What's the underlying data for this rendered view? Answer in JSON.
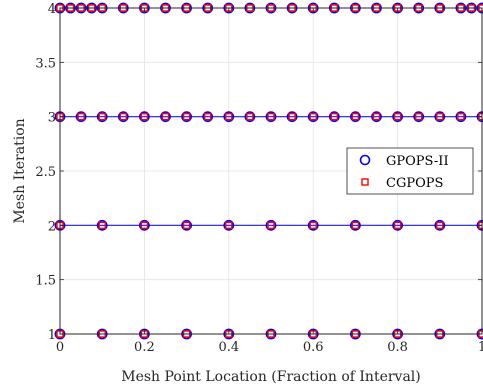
{
  "chart_data": {
    "type": "scatter",
    "title": "",
    "xlabel": "Mesh Point Location (Fraction of Interval)",
    "ylabel": "Mesh Iteration",
    "xlim": [
      0,
      1
    ],
    "ylim": [
      1,
      4
    ],
    "x_ticks": [
      "0",
      "0.2",
      "0.4",
      "0.6",
      "0.8",
      "1"
    ],
    "x_tick_values": [
      0,
      0.2,
      0.4,
      0.6,
      0.8,
      1
    ],
    "y_ticks": [
      "1",
      "1.5",
      "2",
      "2.5",
      "3",
      "3.5",
      "4"
    ],
    "y_tick_values": [
      1,
      1.5,
      2,
      2.5,
      3,
      3.5,
      4
    ],
    "grid": true,
    "legend_position": "right",
    "series": [
      {
        "name": "GPOPS-II",
        "marker": "circle",
        "color": "#0000ff",
        "points": {
          "1": [
            0,
            0.1,
            0.2,
            0.3,
            0.4,
            0.5,
            0.6,
            0.7,
            0.8,
            0.9,
            1
          ],
          "2": [
            0,
            0.1,
            0.2,
            0.3,
            0.4,
            0.5,
            0.6,
            0.7,
            0.8,
            0.9,
            1
          ],
          "3": [
            0,
            0.05,
            0.1,
            0.15,
            0.2,
            0.25,
            0.3,
            0.35,
            0.4,
            0.45,
            0.5,
            0.55,
            0.6,
            0.65,
            0.7,
            0.75,
            0.8,
            0.85,
            0.9,
            0.95,
            1
          ],
          "4": [
            0,
            0.025,
            0.05,
            0.075,
            0.1,
            0.15,
            0.2,
            0.25,
            0.3,
            0.35,
            0.4,
            0.45,
            0.5,
            0.55,
            0.6,
            0.65,
            0.7,
            0.75,
            0.8,
            0.85,
            0.9,
            0.95,
            0.975,
            1
          ]
        }
      },
      {
        "name": "CGPOPS",
        "marker": "square",
        "color": "#ff0000",
        "points": {
          "1": [
            0,
            0.1,
            0.2,
            0.3,
            0.4,
            0.5,
            0.6,
            0.7,
            0.8,
            0.9,
            1
          ],
          "2": [
            0,
            0.1,
            0.2,
            0.3,
            0.4,
            0.5,
            0.6,
            0.7,
            0.8,
            0.9,
            1
          ],
          "3": [
            0,
            0.05,
            0.1,
            0.15,
            0.2,
            0.25,
            0.3,
            0.35,
            0.4,
            0.45,
            0.5,
            0.55,
            0.6,
            0.65,
            0.7,
            0.75,
            0.8,
            0.85,
            0.9,
            0.95,
            1
          ],
          "4": [
            0,
            0.025,
            0.05,
            0.075,
            0.1,
            0.15,
            0.2,
            0.25,
            0.3,
            0.35,
            0.4,
            0.45,
            0.5,
            0.55,
            0.6,
            0.65,
            0.7,
            0.75,
            0.8,
            0.85,
            0.9,
            0.95,
            0.975,
            1
          ]
        }
      }
    ]
  }
}
